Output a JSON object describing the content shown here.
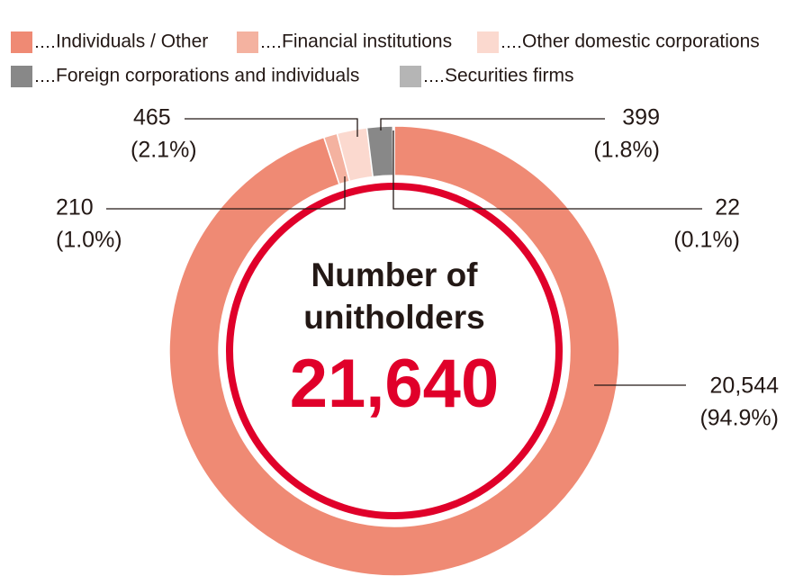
{
  "chart_data": {
    "type": "donut",
    "categories": [
      "Individuals / Other",
      "Financial institutions",
      "Other domestic corporations",
      "Foreign corporations and individuals",
      "Securities firms"
    ],
    "values": [
      20544,
      210,
      465,
      399,
      22
    ],
    "value_labels": [
      "20,544",
      "210",
      "465",
      "399",
      "22"
    ],
    "percent_labels": [
      "(94.9%)",
      "(1.0%)",
      "(2.1%)",
      "(1.8%)",
      "(0.1%)"
    ],
    "colors": [
      "#ef8a74",
      "#f4b2a0",
      "#fbd9cf",
      "#888888",
      "#b5b5b5"
    ],
    "center_lines": [
      "Number of",
      "unitholders"
    ],
    "total_label": "21,640",
    "total_color": "#e0002a"
  }
}
